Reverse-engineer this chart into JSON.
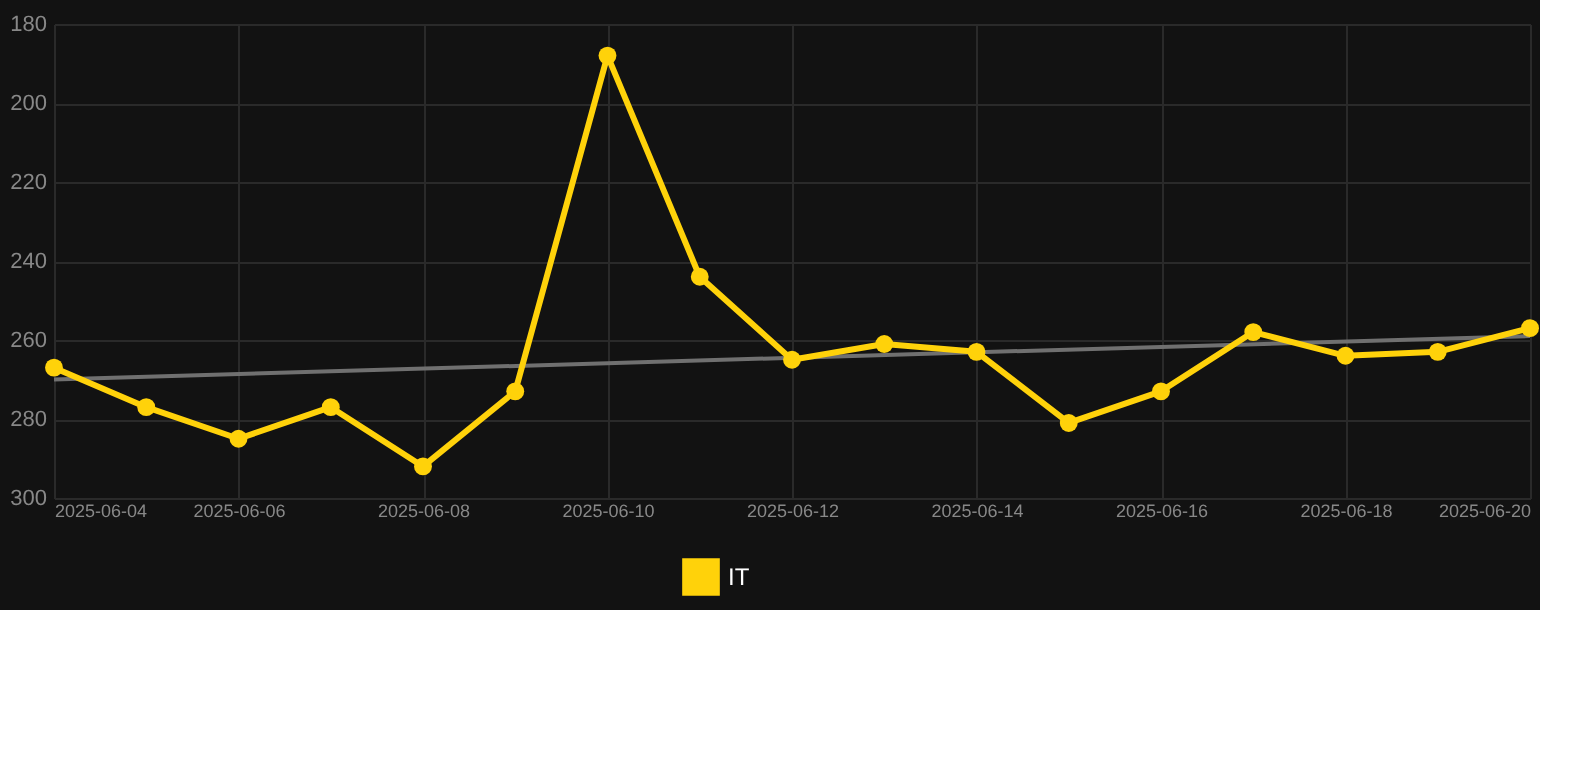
{
  "chart_data": {
    "type": "line",
    "x": [
      "2025-06-04",
      "2025-06-05",
      "2025-06-06",
      "2025-06-07",
      "2025-06-08",
      "2025-06-09",
      "2025-06-10",
      "2025-06-11",
      "2025-06-12",
      "2025-06-13",
      "2025-06-14",
      "2025-06-15",
      "2025-06-16",
      "2025-06-17",
      "2025-06-18",
      "2025-06-19",
      "2025-06-20"
    ],
    "series": [
      {
        "name": "IT",
        "color": "#ffd20a",
        "marker": "circle",
        "values": [
          267,
          277,
          285,
          277,
          292,
          273,
          188,
          244,
          265,
          261,
          263,
          281,
          273,
          258,
          264,
          263,
          257
        ]
      },
      {
        "type": "line",
        "color": "#707070",
        "marker": "none",
        "x": [
          "2025-06-04",
          "2025-06-20"
        ],
        "values": [
          270,
          259
        ]
      }
    ],
    "xlim": [
      "2025-06-04",
      "2025-06-20"
    ],
    "xticks": [
      "2025-06-04",
      "2025-06-06",
      "2025-06-08",
      "2025-06-10",
      "2025-06-12",
      "2025-06-14",
      "2025-06-16",
      "2025-06-18",
      "2025-06-20"
    ],
    "ylim": [
      300,
      180
    ],
    "yticks": [
      180,
      200,
      220,
      240,
      260,
      280,
      300
    ],
    "grid": true,
    "legend": "bottom"
  }
}
